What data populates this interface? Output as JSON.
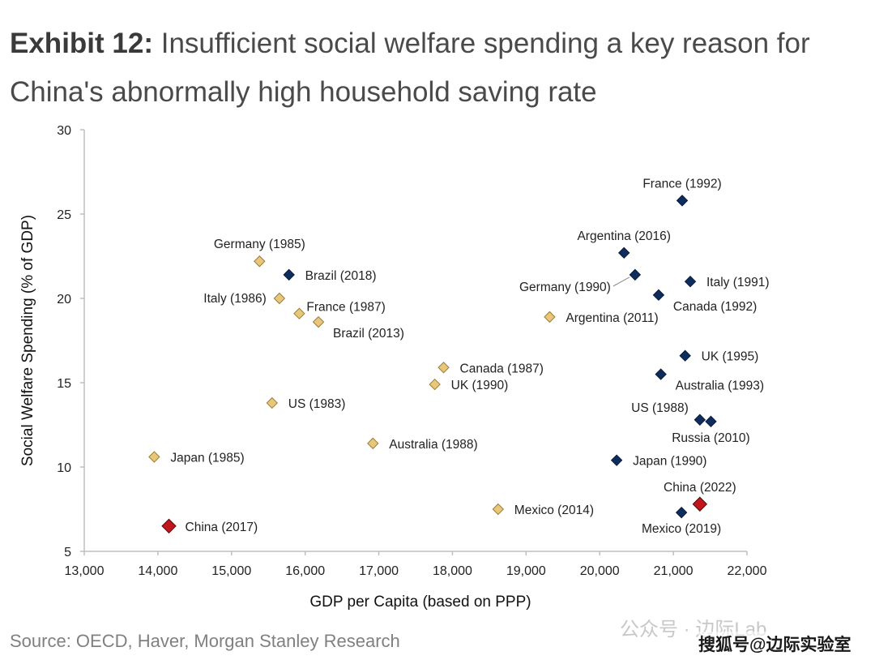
{
  "title": {
    "exhibit": "Exhibit 12:",
    "text": "Insufficient social welfare spending a key reason for China's abnormally high household saving rate"
  },
  "source": "Source: OECD, Haver, Morgan Stanley Research",
  "watermark": {
    "top": "公众号 · 边际Lab",
    "bottom": "搜狐号@边际实验室"
  },
  "colors": {
    "earlier": "#e8c77a",
    "later": "#0e2d5c",
    "china": "#c0171c",
    "axis": "#bfbfbf"
  },
  "chart_data": {
    "type": "scatter",
    "xlabel": "GDP per Capita (based on PPP)",
    "ylabel": "Social Welfare Spending (% of GDP)",
    "xlim": [
      13000,
      22000
    ],
    "ylim": [
      5,
      30
    ],
    "xticks": [
      13000,
      14000,
      15000,
      16000,
      17000,
      18000,
      19000,
      20000,
      21000,
      22000
    ],
    "xtick_labels": [
      "13,000",
      "14,000",
      "15,000",
      "16,000",
      "17,000",
      "18,000",
      "19,000",
      "20,000",
      "21,000",
      "22,000"
    ],
    "yticks": [
      5,
      10,
      15,
      20,
      25,
      30
    ],
    "ytick_labels": [
      "5",
      "10",
      "15",
      "20",
      "25",
      "30"
    ],
    "grid": false,
    "series": [
      {
        "name": "earlier",
        "points": [
          {
            "label": "Germany (1985)",
            "x": 15380,
            "y": 22.2,
            "pos": "above"
          },
          {
            "label": "Italy (1986)",
            "x": 15650,
            "y": 20.0,
            "pos": "left"
          },
          {
            "label": "France (1987)",
            "x": 15920,
            "y": 19.1,
            "pos": "right-up"
          },
          {
            "label": "Brazil (2013)",
            "x": 16180,
            "y": 18.6,
            "pos": "right-down"
          },
          {
            "label": "Canada (1987)",
            "x": 17880,
            "y": 15.9,
            "pos": "right"
          },
          {
            "label": "UK (1990)",
            "x": 17760,
            "y": 14.9,
            "pos": "right"
          },
          {
            "label": "US (1983)",
            "x": 15550,
            "y": 13.8,
            "pos": "right"
          },
          {
            "label": "Australia (1988)",
            "x": 16920,
            "y": 11.4,
            "pos": "right"
          },
          {
            "label": "Japan (1985)",
            "x": 13950,
            "y": 10.6,
            "pos": "right"
          },
          {
            "label": "Argentina (2011)",
            "x": 19320,
            "y": 18.9,
            "pos": "right"
          },
          {
            "label": "Mexico (2014)",
            "x": 18620,
            "y": 7.5,
            "pos": "right"
          }
        ]
      },
      {
        "name": "later",
        "points": [
          {
            "label": "Brazil (2018)",
            "x": 15780,
            "y": 21.4,
            "pos": "right"
          },
          {
            "label": "France (1992)",
            "x": 21120,
            "y": 25.8,
            "pos": "above"
          },
          {
            "label": "Argentina (2016)",
            "x": 20330,
            "y": 22.7,
            "pos": "above"
          },
          {
            "label": "Germany (1990)",
            "x": 20480,
            "y": 21.4,
            "pos": "left-down"
          },
          {
            "label": "Italy (1991)",
            "x": 21230,
            "y": 21.0,
            "pos": "right"
          },
          {
            "label": "Canada (1992)",
            "x": 20800,
            "y": 20.2,
            "pos": "right-down"
          },
          {
            "label": "UK (1995)",
            "x": 21160,
            "y": 16.6,
            "pos": "right"
          },
          {
            "label": "Australia (1993)",
            "x": 20830,
            "y": 15.5,
            "pos": "right-down"
          },
          {
            "label": "US (1988)",
            "x": 21360,
            "y": 12.8,
            "pos": "left-up"
          },
          {
            "label": "Russia (2010)",
            "x": 21510,
            "y": 12.7,
            "pos": "below"
          },
          {
            "label": "Japan (1990)",
            "x": 20230,
            "y": 10.4,
            "pos": "right"
          },
          {
            "label": "Mexico (2019)",
            "x": 21110,
            "y": 7.3,
            "pos": "below"
          }
        ]
      },
      {
        "name": "china",
        "points": [
          {
            "label": "China (2017)",
            "x": 14150,
            "y": 6.5,
            "pos": "right"
          },
          {
            "label": "China (2022)",
            "x": 21360,
            "y": 7.8,
            "pos": "above"
          }
        ]
      }
    ]
  }
}
